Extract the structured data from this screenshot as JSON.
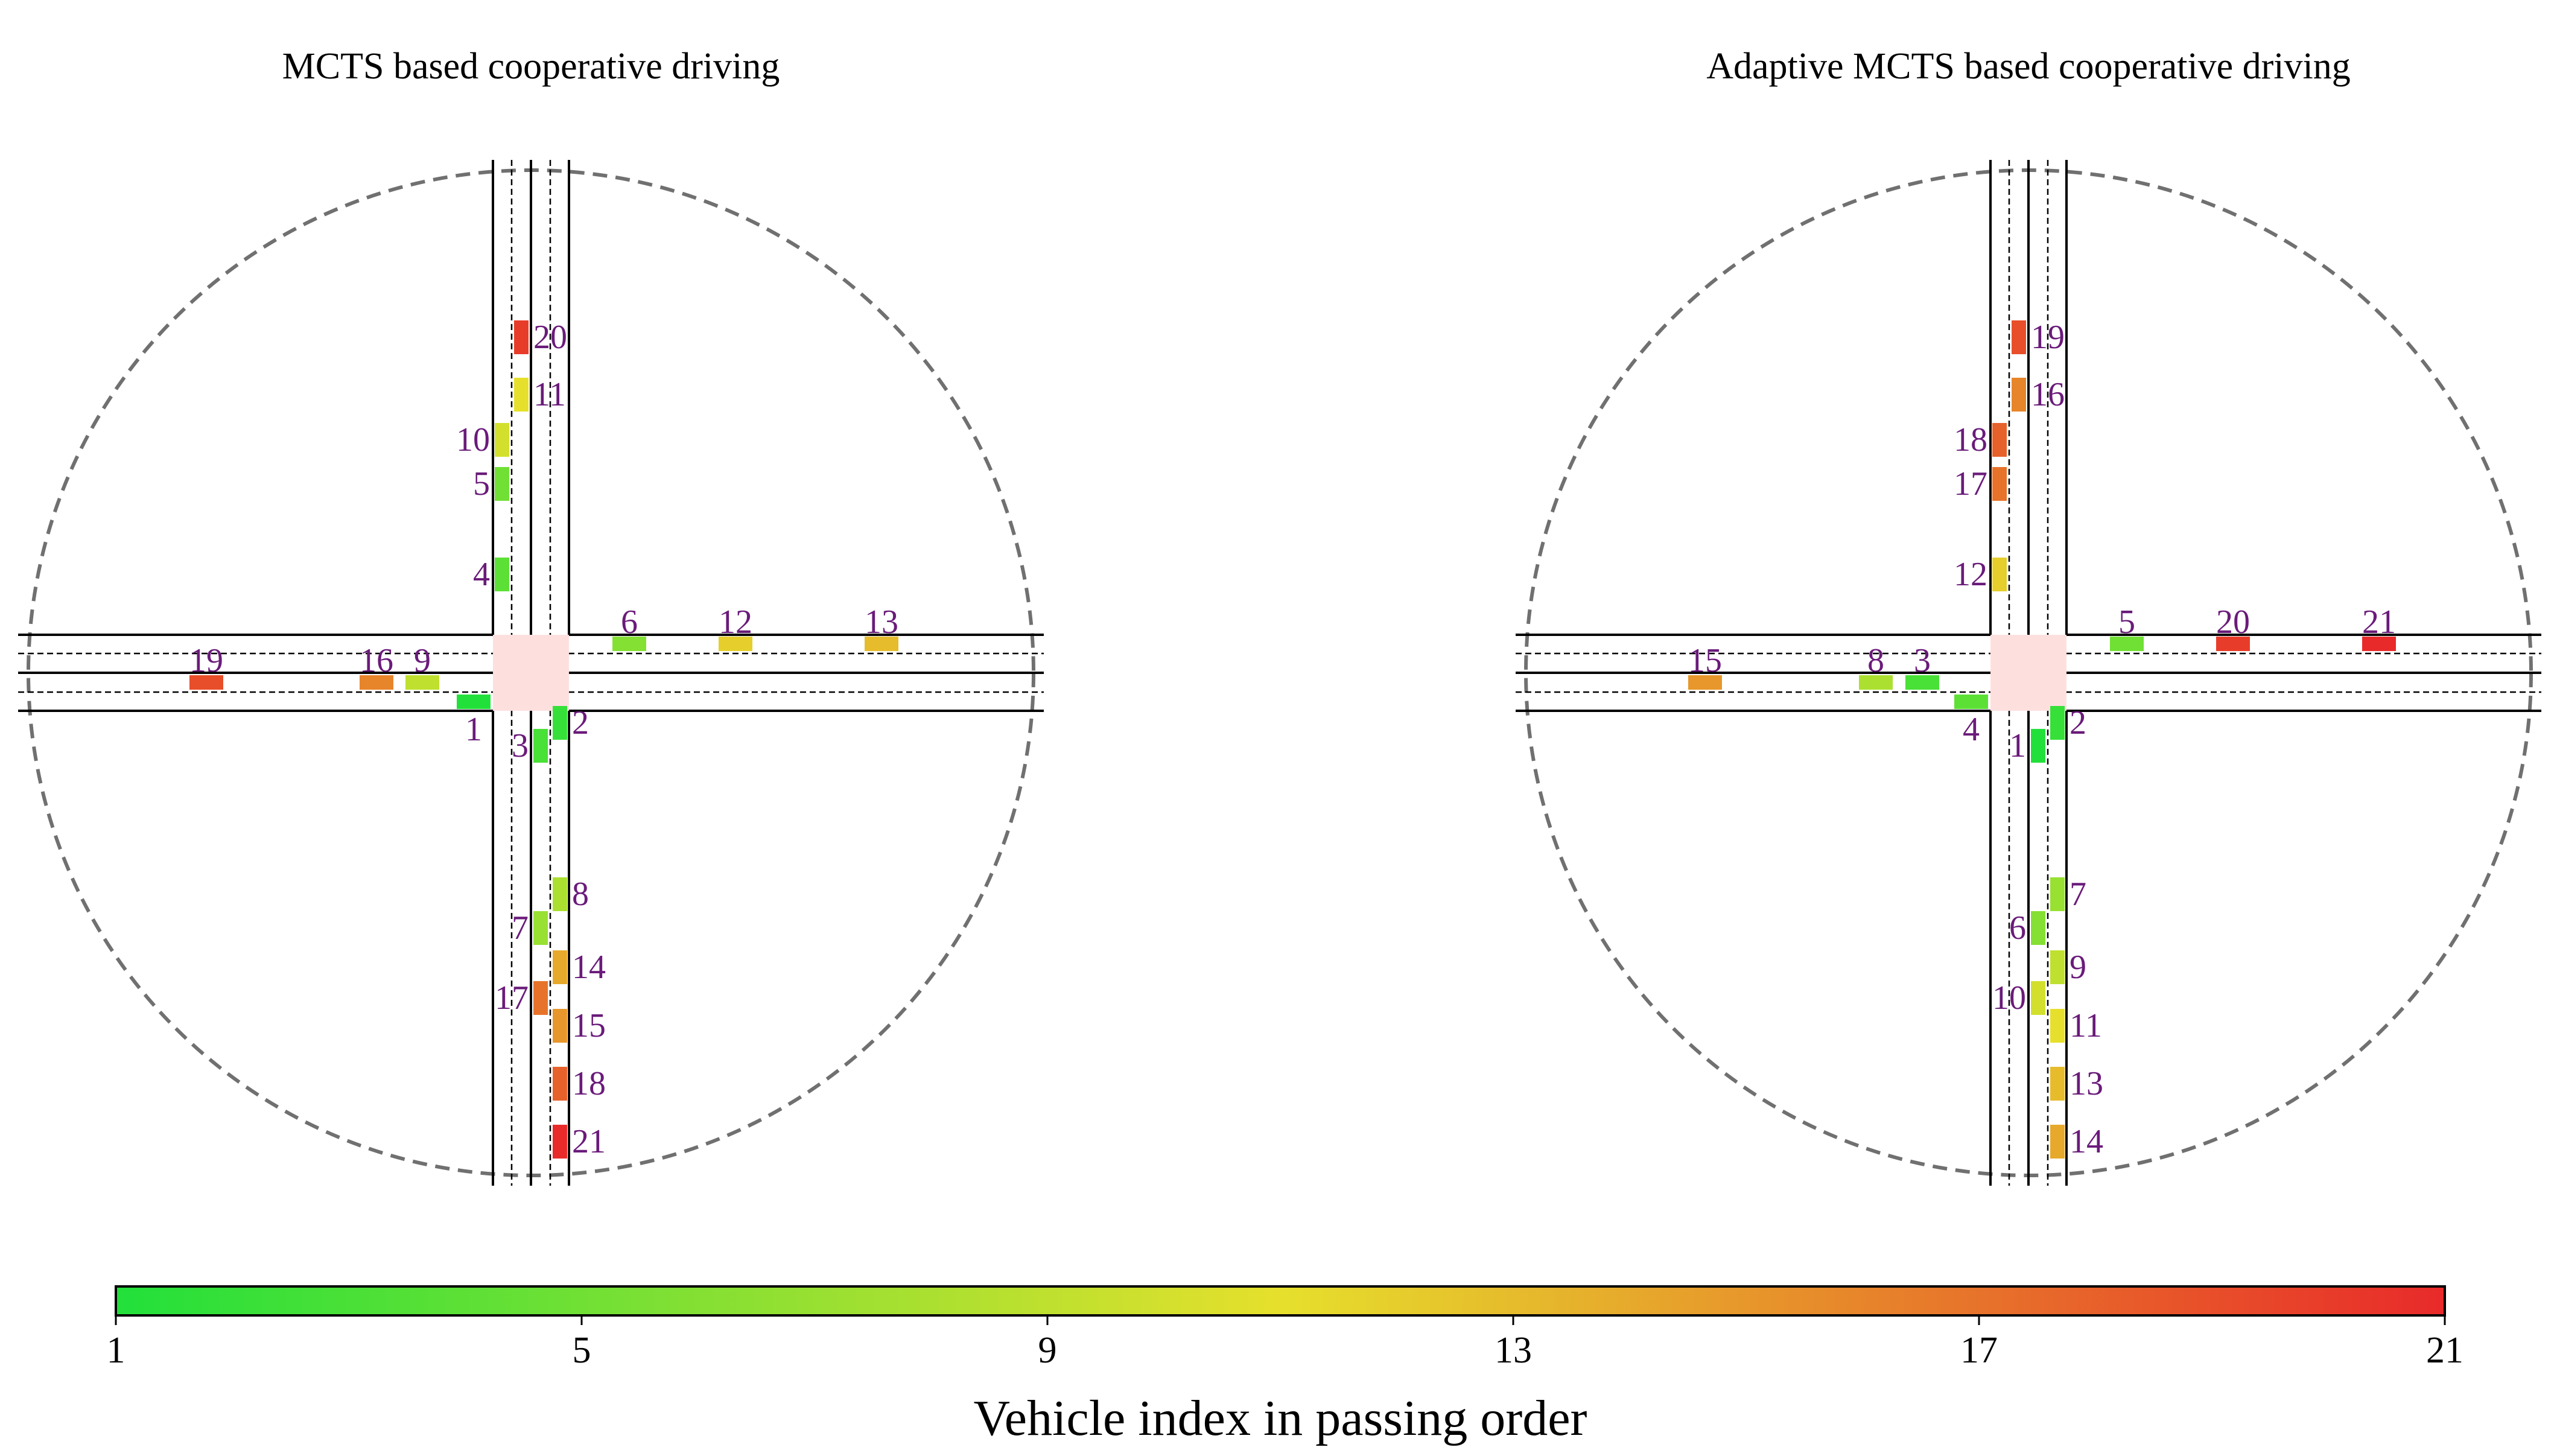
{
  "panels": [
    {
      "title": "MCTS based cooperative driving",
      "vehicles": [
        {
          "id": 1,
          "lane": "W2"
        },
        {
          "id": 9,
          "lane": "W1",
          "dist": 117
        },
        {
          "id": 16,
          "lane": "W1",
          "dist": 193
        },
        {
          "id": 19,
          "lane": "W1",
          "dist": 475
        },
        {
          "id": 6,
          "lane": "E1",
          "dist": 100
        },
        {
          "id": 12,
          "lane": "E1",
          "dist": 276
        },
        {
          "id": 13,
          "lane": "E1",
          "dist": 518
        },
        {
          "id": 4,
          "lane": "N1",
          "dist": 100
        },
        {
          "id": 5,
          "lane": "N1",
          "dist": 250
        },
        {
          "id": 10,
          "lane": "N1",
          "dist": 323
        },
        {
          "id": 11,
          "lane": "N2",
          "dist": 398
        },
        {
          "id": 20,
          "lane": "N2",
          "dist": 493
        },
        {
          "id": 2,
          "lane": "S2",
          "dist": 20
        },
        {
          "id": 3,
          "lane": "S1",
          "dist": 58
        },
        {
          "id": 7,
          "lane": "S1",
          "dist": 360
        },
        {
          "id": 17,
          "lane": "S1",
          "dist": 476
        },
        {
          "id": 8,
          "lane": "S2",
          "dist": 304
        },
        {
          "id": 14,
          "lane": "S2",
          "dist": 425
        },
        {
          "id": 15,
          "lane": "S2",
          "dist": 522
        },
        {
          "id": 18,
          "lane": "S2",
          "dist": 618
        },
        {
          "id": 21,
          "lane": "S2",
          "dist": 714
        }
      ]
    },
    {
      "title": "Adaptive MCTS based cooperative driving",
      "vehicles": [
        {
          "id": 4,
          "lane": "W2"
        },
        {
          "id": 3,
          "lane": "W1",
          "dist": 113
        },
        {
          "id": 8,
          "lane": "W1",
          "dist": 190
        },
        {
          "id": 15,
          "lane": "W1",
          "dist": 473
        },
        {
          "id": 5,
          "lane": "E1",
          "dist": 100
        },
        {
          "id": 20,
          "lane": "E1",
          "dist": 276
        },
        {
          "id": 21,
          "lane": "E1",
          "dist": 518
        },
        {
          "id": 12,
          "lane": "N1",
          "dist": 100
        },
        {
          "id": 17,
          "lane": "N1",
          "dist": 250
        },
        {
          "id": 18,
          "lane": "N1",
          "dist": 323
        },
        {
          "id": 16,
          "lane": "N2",
          "dist": 398
        },
        {
          "id": 19,
          "lane": "N2",
          "dist": 493
        },
        {
          "id": 2,
          "lane": "S2",
          "dist": 20
        },
        {
          "id": 1,
          "lane": "S1",
          "dist": 58
        },
        {
          "id": 6,
          "lane": "S1",
          "dist": 360
        },
        {
          "id": 10,
          "lane": "S1",
          "dist": 476
        },
        {
          "id": 7,
          "lane": "S2",
          "dist": 304
        },
        {
          "id": 9,
          "lane": "S2",
          "dist": 425
        },
        {
          "id": 11,
          "lane": "S2",
          "dist": 522
        },
        {
          "id": 13,
          "lane": "S2",
          "dist": 618
        },
        {
          "id": 14,
          "lane": "S2",
          "dist": 714
        }
      ]
    }
  ],
  "colorbar": {
    "label": "Vehicle index in passing order",
    "min": 1,
    "max": 21,
    "ticks": [
      "1",
      "5",
      "9",
      "13",
      "17",
      "21"
    ],
    "colors": [
      "#22e03a",
      "#e6e02c",
      "#e82a2a"
    ]
  },
  "colors": {
    "intersection": "#fde0de",
    "road_line": "#000000",
    "zone_circle": "#707070",
    "label": "#6a1b7a"
  }
}
